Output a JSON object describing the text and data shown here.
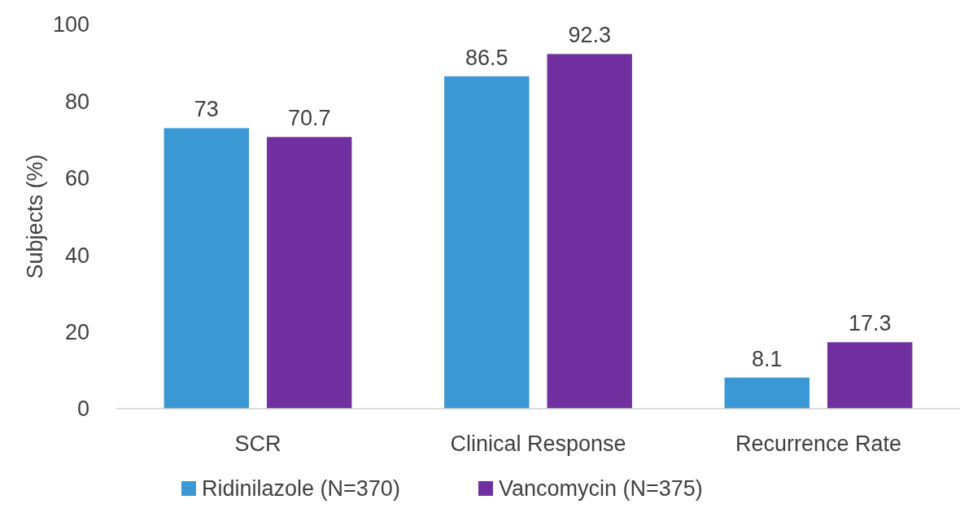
{
  "chart_data": {
    "type": "bar",
    "ylabel": "Subjects (%)",
    "categories": [
      "SCR",
      "Clinical Response",
      "Recurrence Rate"
    ],
    "series": [
      {
        "name": "Ridinilazole (N=370)",
        "color": "#3a98d5",
        "values": [
          73,
          86.5,
          8.1
        ]
      },
      {
        "name": "Vancomycin (N=375)",
        "color": "#7030a0",
        "values": [
          70.7,
          92.3,
          17.3
        ]
      }
    ],
    "ylim": [
      0,
      100
    ],
    "yticks": [
      0,
      20,
      40,
      60,
      80,
      100
    ],
    "data_labels": true,
    "legend": "bottom",
    "grid": false
  }
}
